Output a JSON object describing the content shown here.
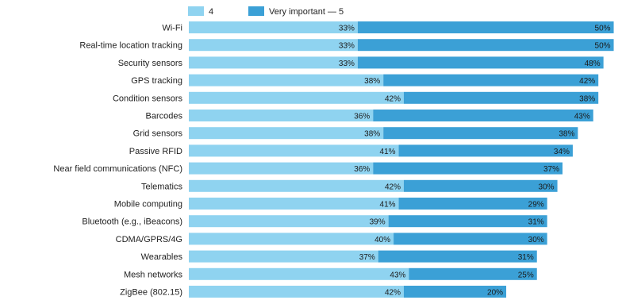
{
  "chart_data": {
    "type": "bar",
    "orientation": "horizontal",
    "stacked": true,
    "legend_position": "top",
    "grid": false,
    "xlim": [
      0,
      84
    ],
    "categories": [
      "Wi-Fi",
      "Real-time location tracking",
      "Security sensors",
      "GPS tracking",
      "Condition sensors",
      "Barcodes",
      "Grid sensors",
      "Passive RFID",
      "Near field communications (NFC)",
      "Telematics",
      "Mobile computing",
      "Bluetooth (e.g., iBeacons)",
      "CDMA/GPRS/4G",
      "Wearables",
      "Mesh networks",
      "ZigBee (802.15)"
    ],
    "series": [
      {
        "name": "4",
        "color": "#8fd3f0",
        "values": [
          33,
          33,
          33,
          38,
          42,
          36,
          38,
          41,
          36,
          42,
          41,
          39,
          40,
          37,
          43,
          42
        ],
        "labels": [
          "33%",
          "33%",
          "33%",
          "38%",
          "42%",
          "36%",
          "38%",
          "41%",
          "36%",
          "42%",
          "41%",
          "39%",
          "40%",
          "37%",
          "43%",
          "42%"
        ]
      },
      {
        "name": "Very important — 5",
        "color": "#3ba0d6",
        "values": [
          50,
          50,
          48,
          42,
          38,
          43,
          38,
          34,
          37,
          30,
          29,
          31,
          30,
          31,
          25,
          20
        ],
        "labels": [
          "50%",
          "50%",
          "48%",
          "42%",
          "38%",
          "43%",
          "38%",
          "34%",
          "37%",
          "30%",
          "29%",
          "31%",
          "30%",
          "31%",
          "25%",
          "20%"
        ]
      }
    ]
  }
}
